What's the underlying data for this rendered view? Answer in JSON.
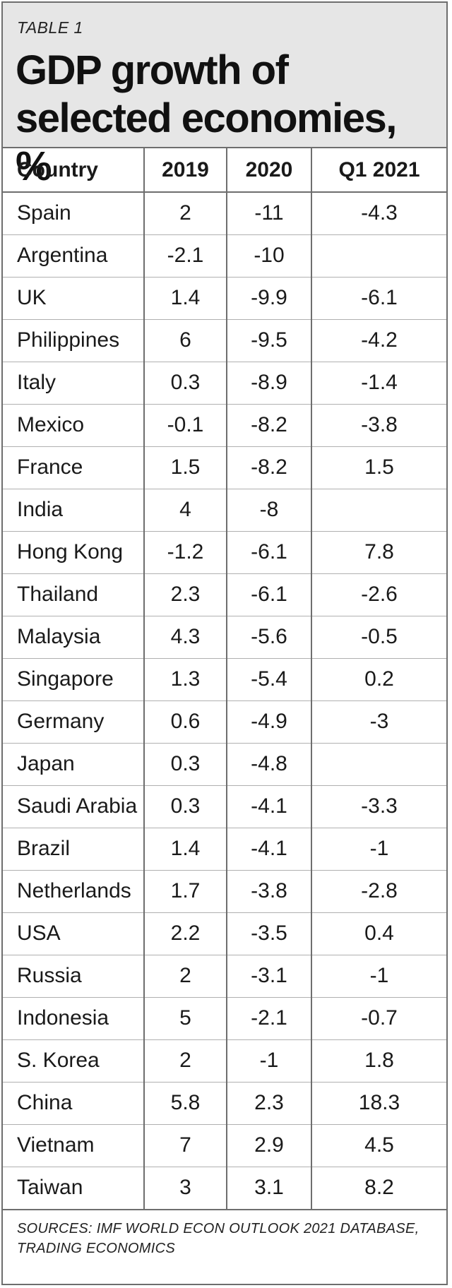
{
  "header": {
    "label": "TABLE 1",
    "title": "GDP growth of selected economies, %"
  },
  "colors": {
    "negative": "#d21f2b",
    "positive": "#1a1a1a",
    "header_bg": "#e6e6e6"
  },
  "chart_data": {
    "type": "table",
    "title": "GDP growth of selected economies, %",
    "columns": [
      "Country",
      "2019",
      "2020",
      "Q1 2021"
    ],
    "rows": [
      [
        "Spain",
        "2",
        "-11",
        "-4.3"
      ],
      [
        "Argentina",
        "-2.1",
        "-10",
        ""
      ],
      [
        "UK",
        "1.4",
        "-9.9",
        "-6.1"
      ],
      [
        "Philippines",
        "6",
        "-9.5",
        "-4.2"
      ],
      [
        "Italy",
        "0.3",
        "-8.9",
        "-1.4"
      ],
      [
        "Mexico",
        "-0.1",
        "-8.2",
        "-3.8"
      ],
      [
        "France",
        "1.5",
        "-8.2",
        "1.5"
      ],
      [
        "India",
        "4",
        "-8",
        ""
      ],
      [
        "Hong Kong",
        "-1.2",
        "-6.1",
        "7.8"
      ],
      [
        "Thailand",
        "2.3",
        "-6.1",
        "-2.6"
      ],
      [
        "Malaysia",
        "4.3",
        "-5.6",
        "-0.5"
      ],
      [
        "Singapore",
        "1.3",
        "-5.4",
        "0.2"
      ],
      [
        "Germany",
        "0.6",
        "-4.9",
        "-3"
      ],
      [
        "Japan",
        "0.3",
        "-4.8",
        ""
      ],
      [
        "Saudi Arabia",
        "0.3",
        "-4.1",
        "-3.3"
      ],
      [
        "Brazil",
        "1.4",
        "-4.1",
        "-1"
      ],
      [
        "Netherlands",
        "1.7",
        "-3.8",
        "-2.8"
      ],
      [
        "USA",
        "2.2",
        "-3.5",
        "0.4"
      ],
      [
        "Russia",
        "2",
        "-3.1",
        "-1"
      ],
      [
        "Indonesia",
        "5",
        "-2.1",
        "-0.7"
      ],
      [
        "S. Korea",
        "2",
        "-1",
        "1.8"
      ],
      [
        "China",
        "5.8",
        "2.3",
        "18.3"
      ],
      [
        "Vietnam",
        "7",
        "2.9",
        "4.5"
      ],
      [
        "Taiwan",
        "3",
        "3.1",
        "8.2"
      ]
    ],
    "negative_color": "#d21f2b",
    "negative_exceptions": [
      [
        "Netherlands",
        "2020"
      ]
    ]
  },
  "footer": {
    "sources": "SOURCES: IMF WORLD ECON OUTLOOK 2021 DATABASE, TRADING ECONOMICS"
  }
}
